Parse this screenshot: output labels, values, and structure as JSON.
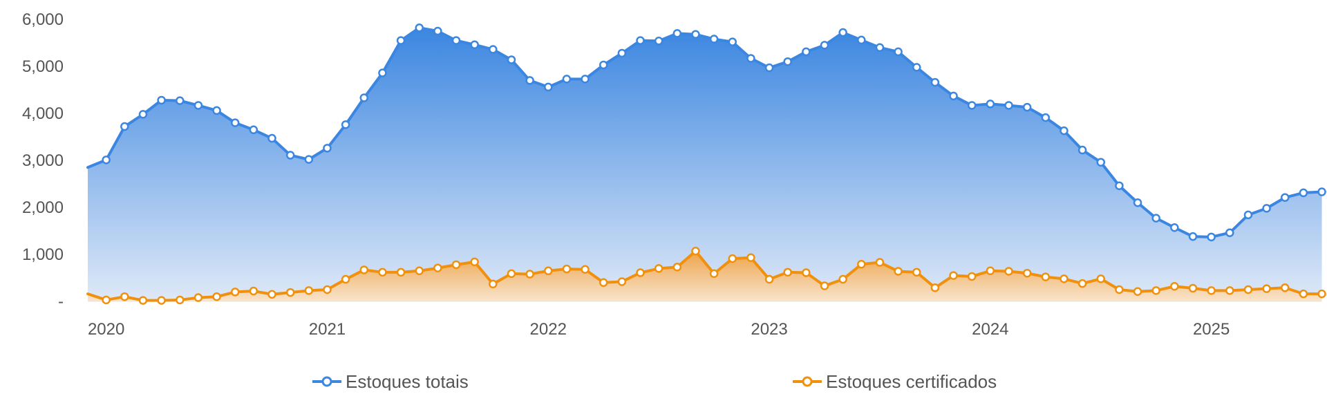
{
  "chart_data": {
    "type": "area",
    "title": "",
    "xlabel": "",
    "ylabel": "",
    "ylim": [
      0,
      6000
    ],
    "y_ticks": [
      "-",
      "1,000",
      "2,000",
      "3,000",
      "4,000",
      "5,000",
      "6,000"
    ],
    "x_ticks": [
      "2020",
      "2021",
      "2022",
      "2023",
      "2024",
      "2025"
    ],
    "grid": false,
    "legend_position": "bottom",
    "x": [
      "2019-12",
      "2020-01",
      "2020-02",
      "2020-03",
      "2020-04",
      "2020-05",
      "2020-06",
      "2020-07",
      "2020-08",
      "2020-09",
      "2020-10",
      "2020-11",
      "2020-12",
      "2021-01",
      "2021-02",
      "2021-03",
      "2021-04",
      "2021-05",
      "2021-06",
      "2021-07",
      "2021-08",
      "2021-09",
      "2021-10",
      "2021-11",
      "2021-12",
      "2022-01",
      "2022-02",
      "2022-03",
      "2022-04",
      "2022-05",
      "2022-06",
      "2022-07",
      "2022-08",
      "2022-09",
      "2022-10",
      "2022-11",
      "2022-12",
      "2023-01",
      "2023-02",
      "2023-03",
      "2023-04",
      "2023-05",
      "2023-06",
      "2023-07",
      "2023-08",
      "2023-09",
      "2023-10",
      "2023-11",
      "2023-12",
      "2024-01",
      "2024-02",
      "2024-03",
      "2024-04",
      "2024-05",
      "2024-06",
      "2024-07",
      "2024-08",
      "2024-09",
      "2024-10",
      "2024-11",
      "2024-12",
      "2025-01",
      "2025-02",
      "2025-03",
      "2025-04",
      "2025-05",
      "2025-06",
      "2025-07"
    ],
    "series": [
      {
        "name": "Estoques totais",
        "color": "#3b86e0",
        "values": [
          2850,
          3010,
          3720,
          3980,
          4280,
          4270,
          4170,
          4060,
          3800,
          3650,
          3470,
          3110,
          3020,
          3260,
          3760,
          4330,
          4860,
          5550,
          5820,
          5750,
          5550,
          5460,
          5360,
          5140,
          4700,
          4560,
          4730,
          4730,
          5030,
          5280,
          5550,
          5540,
          5700,
          5680,
          5580,
          5520,
          5170,
          4970,
          5100,
          5310,
          5450,
          5720,
          5560,
          5400,
          5310,
          4980,
          4660,
          4370,
          4170,
          4200,
          4170,
          4130,
          3910,
          3630,
          3220,
          2960,
          2460,
          2100,
          1770,
          1570,
          1380,
          1370,
          1460,
          1840,
          1980,
          2210,
          2310,
          2330
        ]
      },
      {
        "name": "Estoques certificados",
        "color": "#f0900c",
        "values": [
          160,
          30,
          100,
          20,
          20,
          30,
          80,
          100,
          200,
          220,
          150,
          190,
          230,
          250,
          470,
          670,
          620,
          620,
          650,
          710,
          780,
          840,
          370,
          590,
          580,
          650,
          690,
          680,
          400,
          420,
          610,
          700,
          730,
          1070,
          590,
          910,
          930,
          470,
          620,
          610,
          330,
          470,
          790,
          830,
          640,
          620,
          290,
          550,
          530,
          650,
          640,
          600,
          520,
          480,
          380,
          480,
          250,
          210,
          230,
          320,
          280,
          230,
          230,
          250,
          270,
          290,
          160,
          160
        ]
      }
    ]
  }
}
